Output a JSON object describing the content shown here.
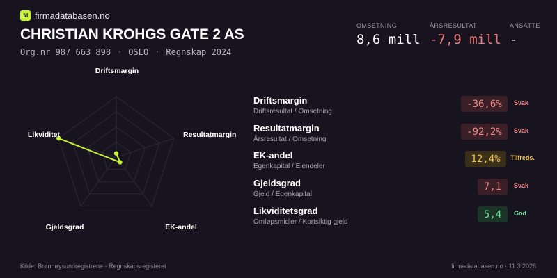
{
  "brand": {
    "logo": "fd",
    "name": "firmadatabasen.no",
    "accent": "#c6f432"
  },
  "company": {
    "name": "CHRISTIAN KROHGS GATE 2 AS",
    "orgnr": "Org.nr 987 663 898",
    "city": "OSLO",
    "period": "Regnskap 2024",
    "separator": "·"
  },
  "kpis": [
    {
      "label": "OMSETNING",
      "value": "8,6 mill"
    },
    {
      "label": "ÅRSRESULTAT",
      "value": "-7,9 mill"
    },
    {
      "label": "ANSATTE",
      "value": "-"
    }
  ],
  "radar": {
    "axes": [
      "Driftsmargin",
      "Resultatmargin",
      "EK-andel",
      "Gjeldsgrad",
      "Likviditet"
    ],
    "levels": [
      0.061,
      0,
      0.106,
      0,
      1
    ]
  },
  "metrics": [
    {
      "title": "Driftsmargin",
      "subtitle": "Driftsresultat / Omsetning",
      "value": "-36,6%",
      "status": "Svak"
    },
    {
      "title": "Resultatmargin",
      "subtitle": "Årsresultat / Omsetning",
      "value": "-92,2%",
      "status": "Svak"
    },
    {
      "title": "EK-andel",
      "subtitle": "Egenkapital / Eiendeler",
      "value": "12,4%",
      "status": "Tilfreds."
    },
    {
      "title": "Gjeldsgrad",
      "subtitle": "Gjeld / Egenkapital",
      "value": "7,1",
      "status": "Svak"
    },
    {
      "title": "Likviditetsgrad",
      "subtitle": "Omløpsmidler / Kortsiktig gjeld",
      "value": "5,4",
      "status": "God"
    }
  ],
  "colors": {
    "background": "#18141f",
    "weak": "#f08a8a",
    "satisfactory": "#f4c64a",
    "good": "#6fe0a0"
  },
  "footer": {
    "source": "Kilde: Brønnøysundregistrene · Regnskapsregisteret",
    "site": "firmadatabasen.no · 11.3.2026"
  }
}
